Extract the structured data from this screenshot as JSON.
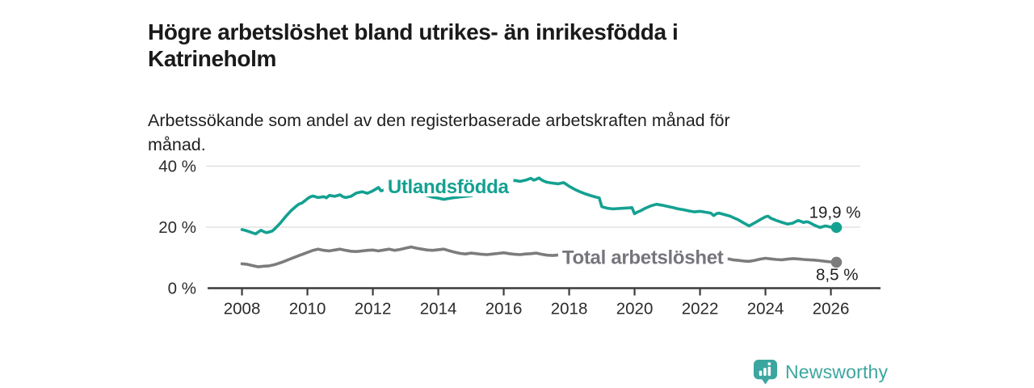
{
  "header": {
    "title": "Högre arbetslöshet bland utrikes- än inrikesfödda i Katrineholm",
    "subtitle": "Arbetssökande som andel av den registerbaserade arbetskraften månad för månad."
  },
  "footer": {
    "brand": "Newsworthy",
    "brand_color": "#3BA69F",
    "logo_icon": "newsworthy-speech-bubble-bar-chart-icon"
  },
  "chart_data": {
    "type": "line",
    "title": "Högre arbetslöshet bland utrikes- än inrikesfödda i Katrineholm",
    "subtitle": "Arbetssökande som andel av den registerbaserade arbetskraften månad för månad.",
    "xlabel": "",
    "ylabel": "",
    "xlim": [
      2006.9,
      2026.9
    ],
    "ylim": [
      0,
      40
    ],
    "grid": "horizontal",
    "legend_position": "inline-labels",
    "x_ticks": [
      {
        "value": 2008,
        "label": "2008"
      },
      {
        "value": 2010,
        "label": "2010"
      },
      {
        "value": 2012,
        "label": "2012"
      },
      {
        "value": 2014,
        "label": "2014"
      },
      {
        "value": 2016,
        "label": "2016"
      },
      {
        "value": 2018,
        "label": "2018"
      },
      {
        "value": 2020,
        "label": "2020"
      },
      {
        "value": 2022,
        "label": "2022"
      },
      {
        "value": 2024,
        "label": "2024"
      },
      {
        "value": 2026,
        "label": "2026"
      }
    ],
    "y_ticks": [
      {
        "value": 0,
        "label": "0 %"
      },
      {
        "value": 20,
        "label": "20 %"
      },
      {
        "value": 40,
        "label": "40 %"
      }
    ],
    "colors": {
      "grid": "#dcdcdc",
      "axis": "#3c3c3c",
      "tick_text": "#2b2b2b",
      "value_label_text": "#1f1f1f"
    },
    "series": [
      {
        "name": "Total arbetslöshet",
        "color": "#7c7c7c",
        "label_color": "#75757c",
        "inline_label": {
          "text": "Total arbetslöshet",
          "x": 2020.25,
          "y": 9.6
        },
        "end_label": {
          "text": "8,5 %",
          "dx": 27,
          "dy": 22
        },
        "end_value": 8.5,
        "points": [
          [
            2008,
            8.0
          ],
          [
            2008.17,
            7.8
          ],
          [
            2008.33,
            7.4
          ],
          [
            2008.5,
            7.0
          ],
          [
            2008.67,
            7.2
          ],
          [
            2008.83,
            7.3
          ],
          [
            2009,
            7.7
          ],
          [
            2009.25,
            8.6
          ],
          [
            2009.5,
            9.7
          ],
          [
            2009.75,
            10.7
          ],
          [
            2010,
            11.7
          ],
          [
            2010.17,
            12.4
          ],
          [
            2010.33,
            12.8
          ],
          [
            2010.5,
            12.4
          ],
          [
            2010.67,
            12.2
          ],
          [
            2010.83,
            12.5
          ],
          [
            2011,
            12.8
          ],
          [
            2011.17,
            12.4
          ],
          [
            2011.33,
            12.1
          ],
          [
            2011.5,
            12.0
          ],
          [
            2011.67,
            12.2
          ],
          [
            2011.83,
            12.4
          ],
          [
            2012,
            12.5
          ],
          [
            2012.17,
            12.2
          ],
          [
            2012.33,
            12.5
          ],
          [
            2012.5,
            12.8
          ],
          [
            2012.67,
            12.4
          ],
          [
            2012.83,
            12.7
          ],
          [
            2013,
            13.1
          ],
          [
            2013.17,
            13.5
          ],
          [
            2013.33,
            13.1
          ],
          [
            2013.5,
            12.8
          ],
          [
            2013.67,
            12.5
          ],
          [
            2013.83,
            12.4
          ],
          [
            2014,
            12.6
          ],
          [
            2014.17,
            12.8
          ],
          [
            2014.33,
            12.3
          ],
          [
            2014.5,
            11.8
          ],
          [
            2014.67,
            11.4
          ],
          [
            2014.83,
            11.2
          ],
          [
            2015,
            11.5
          ],
          [
            2015.17,
            11.3
          ],
          [
            2015.33,
            11.1
          ],
          [
            2015.5,
            11.0
          ],
          [
            2015.67,
            11.2
          ],
          [
            2015.83,
            11.4
          ],
          [
            2016,
            11.6
          ],
          [
            2016.17,
            11.3
          ],
          [
            2016.33,
            11.1
          ],
          [
            2016.5,
            11.0
          ],
          [
            2016.67,
            11.2
          ],
          [
            2016.83,
            11.3
          ],
          [
            2017,
            11.5
          ],
          [
            2017.17,
            11.1
          ],
          [
            2017.33,
            10.8
          ],
          [
            2017.5,
            10.7
          ],
          [
            2017.67,
            10.9
          ],
          [
            2017.83,
            11.1
          ],
          [
            2018,
            11.2
          ],
          [
            2018.25,
            11.4
          ],
          [
            2018.5,
            11.1
          ],
          [
            2018.75,
            11.3
          ],
          [
            2019,
            11.5
          ],
          [
            2019.25,
            11.2
          ],
          [
            2019.5,
            11.0
          ],
          [
            2019.75,
            10.8
          ],
          [
            2020,
            11.0
          ],
          [
            2020.25,
            11.3
          ],
          [
            2020.5,
            11.5
          ],
          [
            2020.75,
            11.2
          ],
          [
            2021,
            11.0
          ],
          [
            2021.25,
            10.7
          ],
          [
            2021.5,
            10.4
          ],
          [
            2021.75,
            10.2
          ],
          [
            2022,
            10.1
          ],
          [
            2022.25,
            9.9
          ],
          [
            2022.5,
            9.8
          ],
          [
            2022.75,
            9.7
          ],
          [
            2022.92,
            9.5
          ],
          [
            2023,
            9.3
          ],
          [
            2023.17,
            9.1
          ],
          [
            2023.33,
            8.9
          ],
          [
            2023.5,
            8.8
          ],
          [
            2023.67,
            9.1
          ],
          [
            2023.83,
            9.5
          ],
          [
            2024,
            9.8
          ],
          [
            2024.17,
            9.6
          ],
          [
            2024.33,
            9.4
          ],
          [
            2024.5,
            9.3
          ],
          [
            2024.67,
            9.5
          ],
          [
            2024.83,
            9.7
          ],
          [
            2025,
            9.6
          ],
          [
            2025.17,
            9.4
          ],
          [
            2025.33,
            9.3
          ],
          [
            2025.5,
            9.2
          ],
          [
            2025.67,
            9.0
          ],
          [
            2025.83,
            8.8
          ],
          [
            2026,
            8.6
          ],
          [
            2026.17,
            8.5
          ]
        ]
      },
      {
        "name": "Utlandsfödda",
        "color": "#14a191",
        "label_color": "#14a191",
        "inline_label": {
          "text": "Utlandsfödda",
          "x": 2014.3,
          "y": 32.8
        },
        "end_label": {
          "text": "19,9 %",
          "dx": 30,
          "dy": -12
        },
        "end_value": 19.9,
        "points": [
          [
            2008,
            19.2
          ],
          [
            2008.08,
            19.0
          ],
          [
            2008.17,
            18.7
          ],
          [
            2008.25,
            18.4
          ],
          [
            2008.33,
            18.1
          ],
          [
            2008.42,
            17.8
          ],
          [
            2008.5,
            18.4
          ],
          [
            2008.58,
            19.0
          ],
          [
            2008.67,
            18.5
          ],
          [
            2008.75,
            18.2
          ],
          [
            2008.83,
            18.4
          ],
          [
            2008.92,
            18.7
          ],
          [
            2009,
            19.4
          ],
          [
            2009.17,
            21.3
          ],
          [
            2009.33,
            23.4
          ],
          [
            2009.5,
            25.4
          ],
          [
            2009.67,
            27.0
          ],
          [
            2009.75,
            27.6
          ],
          [
            2009.83,
            27.9
          ],
          [
            2009.92,
            28.6
          ],
          [
            2010,
            29.3
          ],
          [
            2010.08,
            29.9
          ],
          [
            2010.17,
            30.2
          ],
          [
            2010.33,
            29.7
          ],
          [
            2010.5,
            30.0
          ],
          [
            2010.58,
            29.6
          ],
          [
            2010.67,
            30.4
          ],
          [
            2010.83,
            30.1
          ],
          [
            2011,
            30.6
          ],
          [
            2011.08,
            30.0
          ],
          [
            2011.17,
            29.7
          ],
          [
            2011.33,
            30.1
          ],
          [
            2011.5,
            31.2
          ],
          [
            2011.67,
            31.6
          ],
          [
            2011.83,
            31.1
          ],
          [
            2011.92,
            31.5
          ],
          [
            2012,
            31.9
          ],
          [
            2012.08,
            32.4
          ],
          [
            2012.17,
            33.0
          ],
          [
            2012.25,
            31.9
          ],
          [
            2012.33,
            32.1
          ],
          [
            2012.42,
            32.5
          ],
          [
            2012.5,
            31.9
          ],
          [
            2012.67,
            32.2
          ],
          [
            2012.83,
            32.6
          ],
          [
            2013,
            33.0
          ],
          [
            2013.17,
            32.4
          ],
          [
            2013.33,
            31.7
          ],
          [
            2013.5,
            31.0
          ],
          [
            2013.67,
            30.3
          ],
          [
            2013.83,
            29.8
          ],
          [
            2014,
            29.5
          ],
          [
            2014.17,
            29.1
          ],
          [
            2014.33,
            29.4
          ],
          [
            2014.5,
            29.7
          ],
          [
            2014.67,
            29.9
          ],
          [
            2014.83,
            30.1
          ],
          [
            2015,
            30.3
          ],
          [
            2015.17,
            30.8
          ],
          [
            2015.33,
            31.4
          ],
          [
            2015.5,
            31.9
          ],
          [
            2015.67,
            32.6
          ],
          [
            2015.83,
            33.6
          ],
          [
            2016,
            34.6
          ],
          [
            2016.17,
            35.0
          ],
          [
            2016.33,
            35.3
          ],
          [
            2016.5,
            35.0
          ],
          [
            2016.67,
            35.4
          ],
          [
            2016.83,
            36.0
          ],
          [
            2016.92,
            35.4
          ],
          [
            2017,
            35.7
          ],
          [
            2017.08,
            36.1
          ],
          [
            2017.17,
            35.4
          ],
          [
            2017.25,
            35.0
          ],
          [
            2017.33,
            34.7
          ],
          [
            2017.5,
            34.4
          ],
          [
            2017.67,
            34.2
          ],
          [
            2017.83,
            34.6
          ],
          [
            2017.92,
            34.0
          ],
          [
            2018,
            33.4
          ],
          [
            2018.17,
            32.4
          ],
          [
            2018.33,
            31.6
          ],
          [
            2018.5,
            30.9
          ],
          [
            2018.67,
            30.3
          ],
          [
            2018.83,
            29.8
          ],
          [
            2018.92,
            29.6
          ],
          [
            2019,
            26.7
          ],
          [
            2019.17,
            26.2
          ],
          [
            2019.33,
            26.0
          ],
          [
            2019.5,
            26.1
          ],
          [
            2019.67,
            26.2
          ],
          [
            2019.83,
            26.3
          ],
          [
            2019.92,
            26.4
          ],
          [
            2020,
            24.4
          ],
          [
            2020.08,
            24.9
          ],
          [
            2020.17,
            25.3
          ],
          [
            2020.33,
            26.2
          ],
          [
            2020.5,
            27.0
          ],
          [
            2020.67,
            27.5
          ],
          [
            2020.83,
            27.2
          ],
          [
            2021,
            26.8
          ],
          [
            2021.17,
            26.4
          ],
          [
            2021.33,
            26.0
          ],
          [
            2021.5,
            25.7
          ],
          [
            2021.67,
            25.3
          ],
          [
            2021.83,
            25.0
          ],
          [
            2022,
            25.2
          ],
          [
            2022.17,
            24.9
          ],
          [
            2022.33,
            24.6
          ],
          [
            2022.42,
            23.8
          ],
          [
            2022.5,
            24.4
          ],
          [
            2022.58,
            24.6
          ],
          [
            2022.75,
            24.1
          ],
          [
            2022.92,
            23.6
          ],
          [
            2023,
            23.2
          ],
          [
            2023.17,
            22.4
          ],
          [
            2023.33,
            21.4
          ],
          [
            2023.5,
            20.4
          ],
          [
            2023.67,
            21.4
          ],
          [
            2023.83,
            22.4
          ],
          [
            2024,
            23.4
          ],
          [
            2024.08,
            23.6
          ],
          [
            2024.17,
            22.9
          ],
          [
            2024.33,
            22.2
          ],
          [
            2024.5,
            21.6
          ],
          [
            2024.67,
            21.0
          ],
          [
            2024.83,
            21.3
          ],
          [
            2024.92,
            21.8
          ],
          [
            2025,
            22.2
          ],
          [
            2025.08,
            21.9
          ],
          [
            2025.17,
            21.5
          ],
          [
            2025.25,
            21.8
          ],
          [
            2025.33,
            21.6
          ],
          [
            2025.5,
            20.6
          ],
          [
            2025.67,
            19.9
          ],
          [
            2025.83,
            20.4
          ],
          [
            2025.92,
            20.2
          ],
          [
            2026,
            20.0
          ],
          [
            2026.17,
            19.9
          ]
        ]
      }
    ]
  }
}
